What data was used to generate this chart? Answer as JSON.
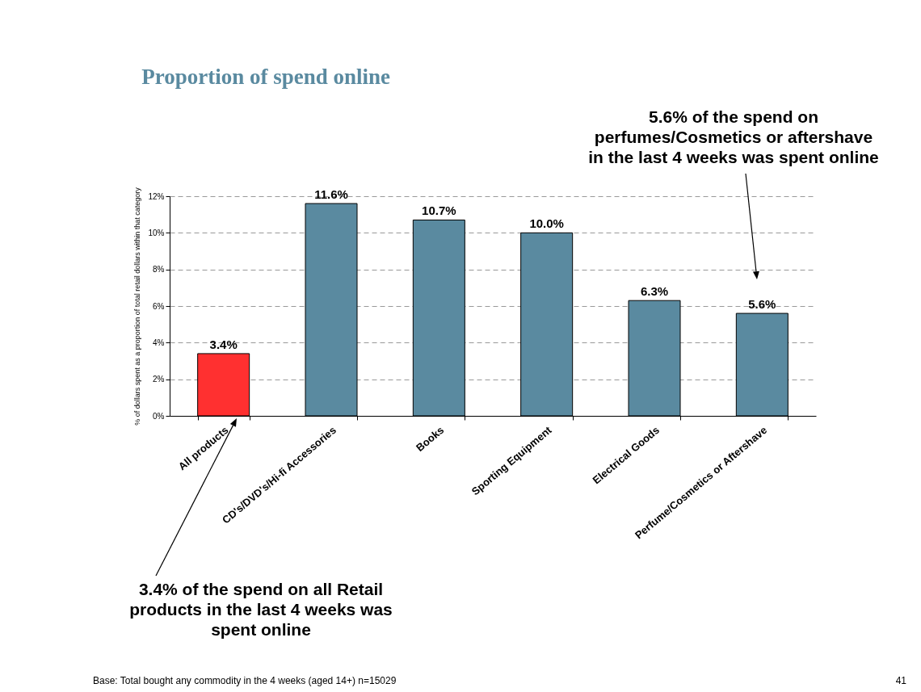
{
  "chart_data": {
    "type": "bar",
    "title": "Proportion of spend online",
    "ylabel": "% of dollars spent as a proportion of total retail dollars within that category",
    "categories": [
      "All products",
      "CD's/DVD's/Hi-fi Accessories",
      "Books",
      "Sporting Equipment",
      "Electrical Goods",
      "Perfume/Cosmetics or Aftershave"
    ],
    "values": [
      3.4,
      11.6,
      10.7,
      10.0,
      6.3,
      5.6
    ],
    "colors": [
      "#ff3030",
      "#5a8aa0",
      "#5a8aa0",
      "#5a8aa0",
      "#5a8aa0",
      "#5a8aa0"
    ],
    "value_labels": [
      "3.4%",
      "11.6%",
      "10.7%",
      "10.0%",
      "6.3%",
      "5.6%"
    ],
    "ylim": [
      0,
      12
    ],
    "yticks": [
      {
        "value": 0,
        "label": "0%"
      },
      {
        "value": 2,
        "label": "2%"
      },
      {
        "value": 4,
        "label": "4%"
      },
      {
        "value": 6,
        "label": "6%"
      },
      {
        "value": 8,
        "label": "8%"
      },
      {
        "value": 10,
        "label": "10%"
      },
      {
        "value": 12,
        "label": "12%"
      }
    ],
    "grid": "y",
    "annotations": [
      "5.6% of the spend on\nperfumes/Cosmetics or aftershave\nin the last 4 weeks was spent online",
      "3.4% of the spend on all Retail\nproducts in the last 4 weeks was\nspent online",
      "Base: Total bought any commodity in the 4 weeks (aged 14+) n=15029",
      "41"
    ]
  }
}
